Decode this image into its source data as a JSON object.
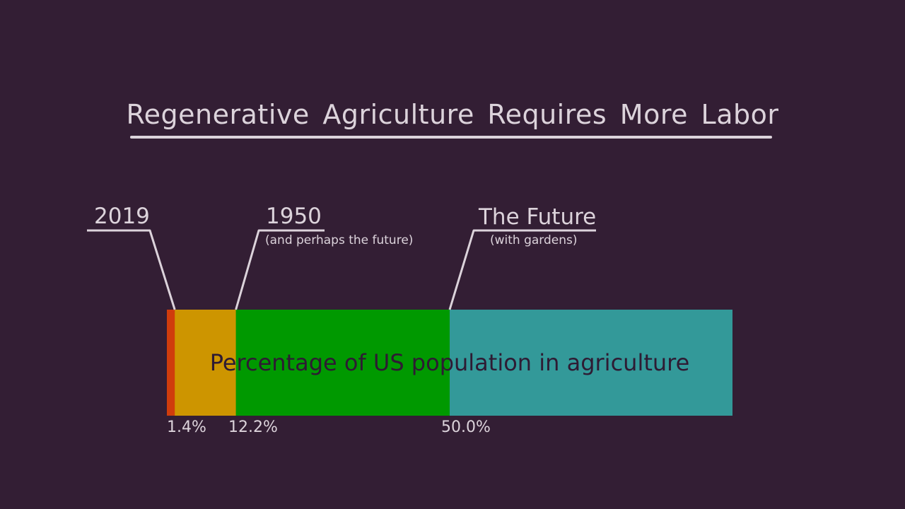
{
  "chart_data": {
    "type": "bar",
    "orientation": "horizontal-stacked",
    "title": "Regenerative Agriculture Requires More Labor",
    "caption": "Percentage of US population in agriculture",
    "xlim": [
      0,
      100
    ],
    "segments": [
      {
        "value": 1.4,
        "label": "1.4%",
        "color": "#d03c0c"
      },
      {
        "value": 12.2,
        "label": "12.2%",
        "color": "#cd9500"
      },
      {
        "value": 50.0,
        "label": "50.0%",
        "color": "#009900"
      },
      {
        "value": 100.0,
        "label": "",
        "color": "#339999"
      }
    ],
    "callouts": [
      {
        "name": "2019",
        "sub": "",
        "at": 1.4
      },
      {
        "name": "1950",
        "sub": "(and perhaps the future)",
        "at": 12.2
      },
      {
        "name": "The Future",
        "sub": "(with gardens)",
        "at": 50.0
      }
    ]
  },
  "colors": {
    "background": "#331e34",
    "text": "#dcd3db",
    "caption_text": "#2e1b33"
  }
}
